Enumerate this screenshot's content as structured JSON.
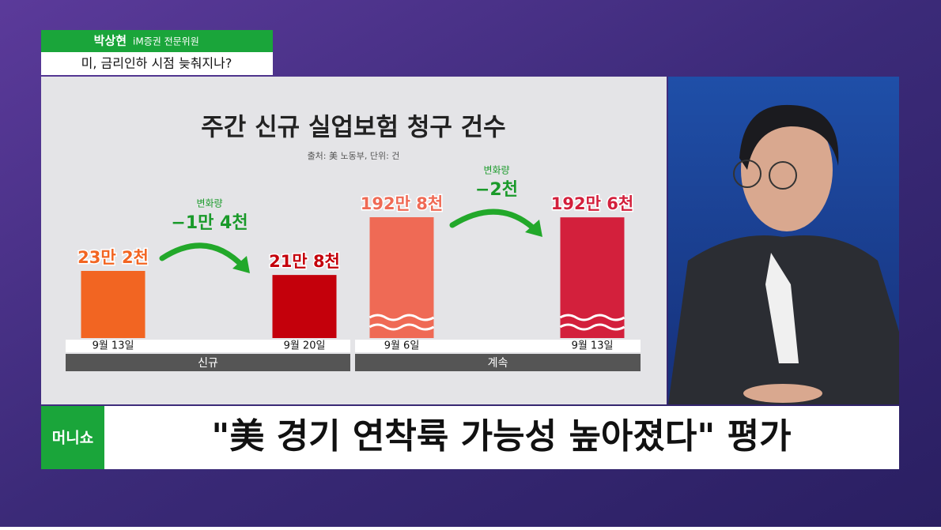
{
  "chart_data": {
    "type": "bar",
    "title": "주간 신규 실업보험 청구 건수",
    "subtitle": "출처: 美 노동부, 단위: 건",
    "panels": [
      {
        "name": "신규",
        "categories": [
          "9월 13일",
          "9월 20일"
        ],
        "values": [
          232000,
          218000
        ],
        "value_labels": [
          "23만 2천",
          "21만 8천"
        ],
        "colors": [
          "#f26522",
          "#c4000b"
        ],
        "change_title": "변화량",
        "change": -14000,
        "change_label": "−1만 4천",
        "broken": false
      },
      {
        "name": "계속",
        "categories": [
          "9월 6일",
          "9월 13일"
        ],
        "values": [
          1928000,
          1926000
        ],
        "value_labels": [
          "192만 8천",
          "192만 6천"
        ],
        "colors": [
          "#ef6a55",
          "#d3203c"
        ],
        "change_title": "변화량",
        "change": -2000,
        "change_label": "−2천",
        "broken": true
      }
    ]
  },
  "header": {
    "name": "박상현",
    "affiliation": "iM증권 전문위원",
    "topic": "미, 금리인하 시점 늦춰지나?"
  },
  "caption": {
    "logo": "머니쇼",
    "headline": "\"美 경기 연착륙 가능성 높아졌다\" 평가"
  }
}
